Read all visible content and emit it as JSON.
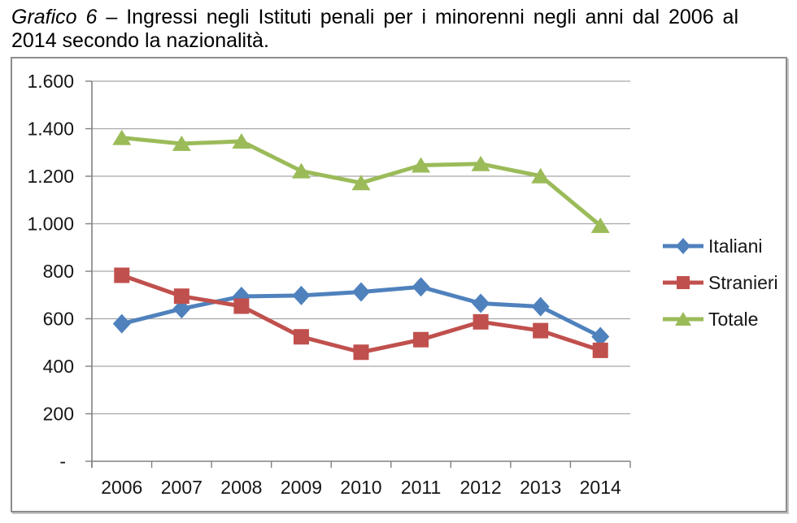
{
  "caption": {
    "italic_part": "Grafico 6",
    "line1_rest": "– Ingressi negli Istituti penali per i minorenni negli anni dal 2006 al",
    "line2": "2014 secondo la nazionalità."
  },
  "chart_data": {
    "type": "line",
    "categories": [
      "2006",
      "2007",
      "2008",
      "2009",
      "2010",
      "2011",
      "2012",
      "2013",
      "2014"
    ],
    "series": [
      {
        "name": "Italiani",
        "color": "#4F81BD",
        "marker": "diamond",
        "values": [
          579,
          642,
          694,
          698,
          713,
          734,
          665,
          651,
          525
        ]
      },
      {
        "name": "Stranieri",
        "color": "#C0504D",
        "marker": "square",
        "values": [
          783,
          695,
          653,
          524,
          459,
          512,
          587,
          550,
          467
        ]
      },
      {
        "name": "Totale",
        "color": "#9BBB59",
        "marker": "triangle",
        "values": [
          1362,
          1337,
          1347,
          1222,
          1172,
          1246,
          1252,
          1201,
          992
        ]
      }
    ],
    "y_axis": {
      "min": 0,
      "max": 1600,
      "step": 200,
      "tick_labels": [
        "-",
        "200",
        "400",
        "600",
        "800",
        "1.000",
        "1.200",
        "1.400",
        "1.600"
      ]
    },
    "x_axis": {
      "tick_labels": [
        "2006",
        "2007",
        "2008",
        "2009",
        "2010",
        "2011",
        "2012",
        "2013",
        "2014"
      ]
    },
    "legend": {
      "position": "right",
      "entries": [
        "Italiani",
        "Stranieri",
        "Totale"
      ]
    },
    "grid": true,
    "colors": {
      "gridline": "#A6A6A6",
      "axis": "#808080",
      "label_text": "#161616"
    }
  }
}
